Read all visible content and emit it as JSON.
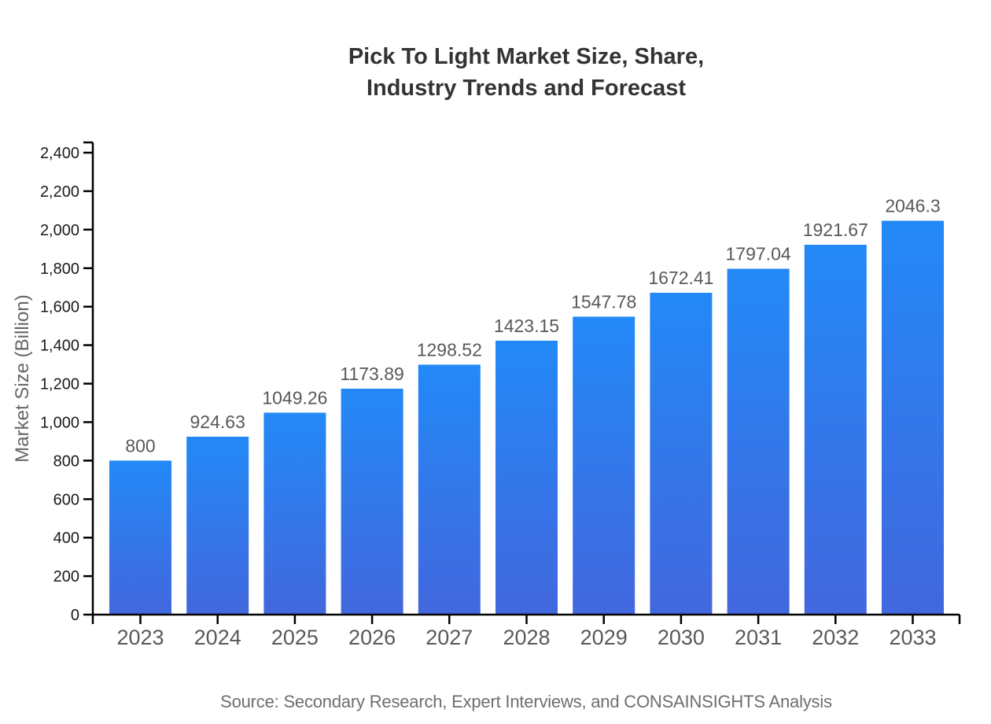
{
  "title": {
    "line1": "Pick To Light Market Size, Share,",
    "line2": "Industry Trends and Forecast",
    "color": "#333333"
  },
  "source": {
    "text": "Source: Secondary Research, Expert Interviews, and CONSAINSIGHTS Analysis",
    "color": "#6e6e6e"
  },
  "chart_data": {
    "type": "bar",
    "title": "Pick To Light Market Size, Share, Industry Trends and Forecast",
    "categories": [
      "2023",
      "2024",
      "2025",
      "2026",
      "2027",
      "2028",
      "2029",
      "2030",
      "2031",
      "2032",
      "2033"
    ],
    "values": [
      800,
      924.63,
      1049.26,
      1173.89,
      1298.52,
      1423.15,
      1547.78,
      1672.41,
      1797.04,
      1921.67,
      2046.3
    ],
    "xlabel": "",
    "ylabel": "Market Size (Billion)",
    "ylim": [
      0,
      2400
    ],
    "ytick_step": 200,
    "ytick_labels": [
      "0",
      "200",
      "400",
      "600",
      "800",
      "1,000",
      "1,200",
      "1,400",
      "1,600",
      "1,800",
      "2,000",
      "2,200",
      "2,400"
    ],
    "grid": false,
    "legend": "none",
    "value_labels_shown": true,
    "colors": {
      "bar_gradient_top": "#2389F6",
      "bar_gradient_bottom": "#4267DE",
      "axis": "#000000",
      "ytick_label": "#1a1a1a",
      "xtick_label": "#58595b",
      "value_label": "#58595b",
      "ylabel": "#666666"
    }
  }
}
